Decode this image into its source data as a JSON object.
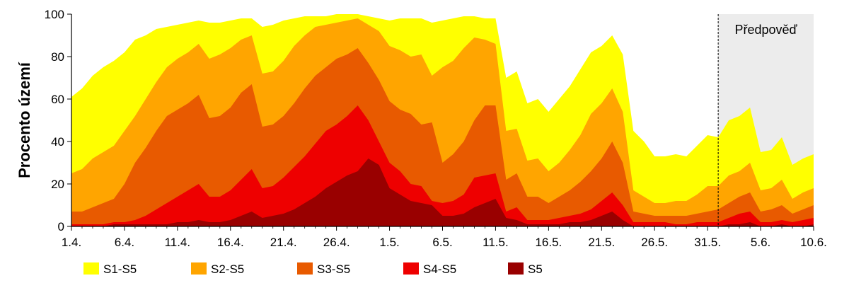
{
  "chart_data": {
    "type": "area",
    "ylabel": "Procento území",
    "ylim": [
      0,
      100
    ],
    "yticks": [
      0,
      20,
      40,
      60,
      80,
      100
    ],
    "x": [
      "1.4.",
      "2.4.",
      "3.4.",
      "4.4.",
      "5.4.",
      "6.4.",
      "7.4.",
      "8.4.",
      "9.4.",
      "10.4.",
      "11.4.",
      "12.4.",
      "13.4.",
      "14.4.",
      "15.4.",
      "16.4.",
      "17.4.",
      "18.4.",
      "19.4.",
      "20.4.",
      "21.4.",
      "22.4.",
      "23.4.",
      "24.4.",
      "25.4.",
      "26.4.",
      "27.4.",
      "28.4.",
      "29.4.",
      "30.4.",
      "1.5.",
      "2.5.",
      "3.5.",
      "4.5.",
      "5.5.",
      "6.5.",
      "7.5.",
      "8.5.",
      "9.5.",
      "10.5.",
      "11.5.",
      "12.5.",
      "13.5.",
      "14.5.",
      "15.5.",
      "16.5.",
      "17.5.",
      "18.5.",
      "19.5.",
      "20.5.",
      "21.5.",
      "22.5.",
      "23.5.",
      "24.5.",
      "25.5.",
      "26.5.",
      "27.5.",
      "28.5.",
      "29.5.",
      "30.5.",
      "31.5.",
      "1.6.",
      "2.6.",
      "3.6.",
      "4.6.",
      "5.6.",
      "6.6.",
      "7.6.",
      "8.6.",
      "9.6.",
      "10.6."
    ],
    "xtick_labels": [
      "1.4.",
      "6.4.",
      "11.4.",
      "16.4.",
      "21.4.",
      "26.4.",
      "1.5.",
      "6.5.",
      "11.5.",
      "16.5.",
      "21.5.",
      "26.5.",
      "31.5.",
      "5.6.",
      "10.6."
    ],
    "xtick_every": 5,
    "forecast": {
      "label": "Předpověď",
      "start_index": 61
    },
    "legend_position": "bottom",
    "series": [
      {
        "name": "S1-S5",
        "color": "#ffff00",
        "values": [
          61,
          65,
          71,
          75,
          78,
          82,
          88,
          90,
          93,
          94,
          95,
          96,
          97,
          96,
          96,
          97,
          98,
          98,
          94,
          95,
          97,
          98,
          99,
          99,
          99,
          100,
          100,
          100,
          99,
          98,
          97,
          98,
          98,
          98,
          96,
          97,
          98,
          99,
          99,
          98,
          98,
          70,
          73,
          58,
          60,
          54,
          60,
          66,
          74,
          82,
          85,
          90,
          81,
          45,
          40,
          33,
          33,
          34,
          33,
          38,
          43,
          42,
          50,
          52,
          56,
          35,
          36,
          42,
          29,
          32,
          34
        ]
      },
      {
        "name": "S2-S5",
        "color": "#ffa500",
        "values": [
          25,
          27,
          32,
          35,
          38,
          45,
          52,
          60,
          68,
          75,
          79,
          82,
          86,
          79,
          81,
          84,
          88,
          90,
          72,
          73,
          78,
          85,
          90,
          94,
          95,
          96,
          97,
          98,
          95,
          92,
          85,
          83,
          80,
          81,
          71,
          75,
          78,
          84,
          89,
          88,
          86,
          45,
          46,
          31,
          32,
          26,
          30,
          36,
          43,
          53,
          58,
          65,
          54,
          17,
          14,
          11,
          11,
          12,
          12,
          15,
          19,
          19,
          24,
          26,
          30,
          17,
          18,
          22,
          13,
          16,
          18
        ]
      },
      {
        "name": "S3-S5",
        "color": "#e85a00",
        "values": [
          7,
          7,
          9,
          11,
          13,
          20,
          30,
          37,
          45,
          52,
          55,
          58,
          62,
          51,
          52,
          56,
          63,
          67,
          47,
          48,
          52,
          58,
          65,
          71,
          75,
          79,
          81,
          84,
          77,
          69,
          59,
          55,
          53,
          48,
          49,
          30,
          34,
          40,
          50,
          57,
          57,
          22,
          25,
          14,
          14,
          11,
          14,
          17,
          21,
          26,
          32,
          40,
          30,
          7,
          6,
          5,
          5,
          5,
          5,
          6,
          7,
          8,
          11,
          14,
          16,
          7,
          8,
          10,
          6,
          8,
          10
        ]
      },
      {
        "name": "S4-S5",
        "color": "#ee0000",
        "values": [
          1,
          1,
          1,
          1,
          2,
          2,
          3,
          5,
          8,
          11,
          14,
          17,
          20,
          14,
          14,
          17,
          22,
          27,
          18,
          19,
          23,
          28,
          33,
          39,
          45,
          48,
          52,
          57,
          50,
          40,
          30,
          26,
          20,
          19,
          12,
          11,
          12,
          15,
          23,
          24,
          25,
          7,
          9,
          3,
          3,
          3,
          4,
          5,
          6,
          8,
          12,
          16,
          10,
          2,
          2,
          2,
          2,
          1,
          1,
          2,
          2,
          2,
          4,
          6,
          7,
          2,
          2,
          3,
          2,
          3,
          4
        ]
      },
      {
        "name": "S5",
        "color": "#990000",
        "values": [
          0,
          0,
          0,
          0,
          1,
          1,
          1,
          1,
          1,
          1,
          2,
          2,
          3,
          2,
          2,
          3,
          5,
          7,
          4,
          5,
          6,
          8,
          11,
          14,
          18,
          21,
          24,
          26,
          32,
          29,
          18,
          15,
          12,
          11,
          10,
          5,
          5,
          6,
          9,
          11,
          13,
          4,
          3,
          1,
          1,
          1,
          1,
          2,
          2,
          3,
          5,
          7,
          3,
          0,
          0,
          0,
          0,
          0,
          0,
          0,
          0,
          0,
          1,
          1,
          2,
          0,
          0,
          1,
          0,
          0,
          1
        ]
      }
    ]
  }
}
